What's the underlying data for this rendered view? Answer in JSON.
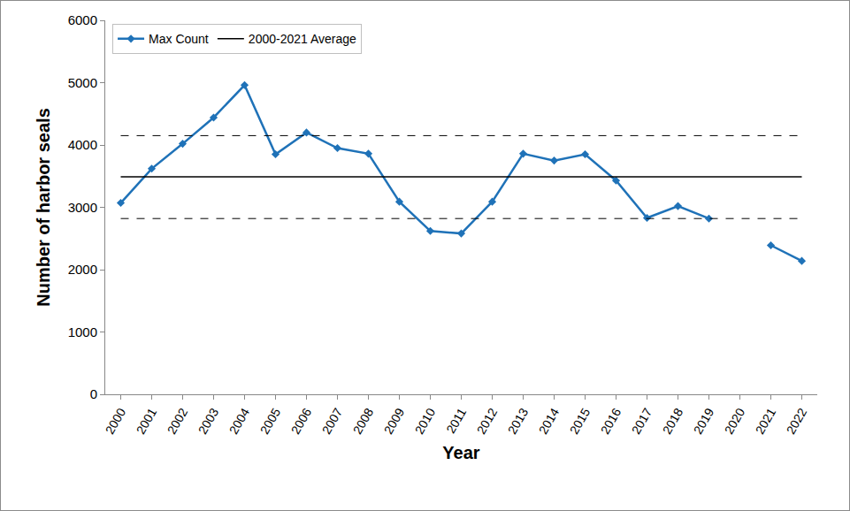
{
  "chart_data": {
    "type": "line",
    "x_label": "Year",
    "y_label": "Number of harbor seals",
    "categories": [
      "2000",
      "2001",
      "2002",
      "2003",
      "2004",
      "2005",
      "2006",
      "2007",
      "2008",
      "2009",
      "2010",
      "2011",
      "2012",
      "2013",
      "2014",
      "2015",
      "2016",
      "2017",
      "2018",
      "2019",
      "2020",
      "2021",
      "2022"
    ],
    "series": [
      {
        "name": "Max Count",
        "color": "#1f72b8",
        "marker": "diamond",
        "line_style": "solid",
        "values": [
          3070,
          3620,
          4020,
          4440,
          4960,
          3850,
          4200,
          3950,
          3860,
          3090,
          2620,
          2580,
          3090,
          3860,
          3750,
          3850,
          3430,
          2830,
          3020,
          2820,
          null,
          2390,
          2140
        ]
      }
    ],
    "average": {
      "name": "2000-2021 Average",
      "value": 3490,
      "color": "#000000",
      "line_style": "solid"
    },
    "band": {
      "values": [
        2820,
        4150
      ],
      "color": "#000000",
      "line_style": "dash"
    },
    "ylim": [
      0,
      6000
    ],
    "yticks": [
      0,
      1000,
      2000,
      3000,
      4000,
      5000,
      6000
    ],
    "grid": false,
    "legend": "top left"
  }
}
